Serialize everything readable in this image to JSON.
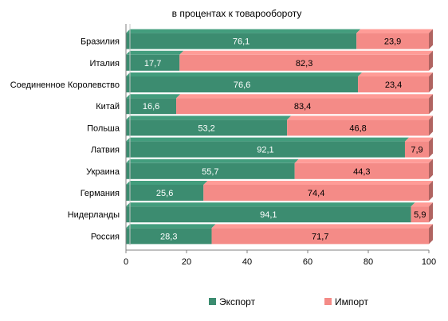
{
  "chart_data": {
    "type": "bar",
    "orientation": "horizontal",
    "stacked": true,
    "title": "в процентах к товарообороту",
    "categories": [
      "Бразилия",
      "Италия",
      "Соединенное Королевство",
      "Китай",
      "Польша",
      "Латвия",
      "Украина",
      "Германия",
      "Нидерланды",
      "Россия"
    ],
    "series": [
      {
        "name": "Экспорт",
        "color": "#3c8c70",
        "values": [
          76.1,
          17.7,
          76.6,
          16.6,
          53.2,
          92.1,
          55.7,
          25.6,
          94.1,
          28.3
        ]
      },
      {
        "name": "Импорт",
        "color": "#f48b87",
        "values": [
          23.9,
          82.3,
          23.4,
          83.4,
          46.8,
          7.9,
          44.3,
          74.4,
          5.9,
          71.7
        ]
      }
    ],
    "value_labels": [
      [
        "76,1",
        "17,7",
        "76,6",
        "16,6",
        "53,2",
        "92,1",
        "55,7",
        "25,6",
        "94,1",
        "28,3"
      ],
      [
        "23,9",
        "82,3",
        "23,4",
        "83,4",
        "46,8",
        "7,9",
        "44,3",
        "74,4",
        "5,9",
        "71,7"
      ]
    ],
    "xlim": [
      0,
      100
    ],
    "xticks": [
      0,
      20,
      40,
      60,
      80,
      100
    ],
    "xtick_labels": [
      "0",
      "20",
      "40",
      "60",
      "80",
      "100"
    ],
    "grid": false,
    "legend_position": "bottom"
  }
}
